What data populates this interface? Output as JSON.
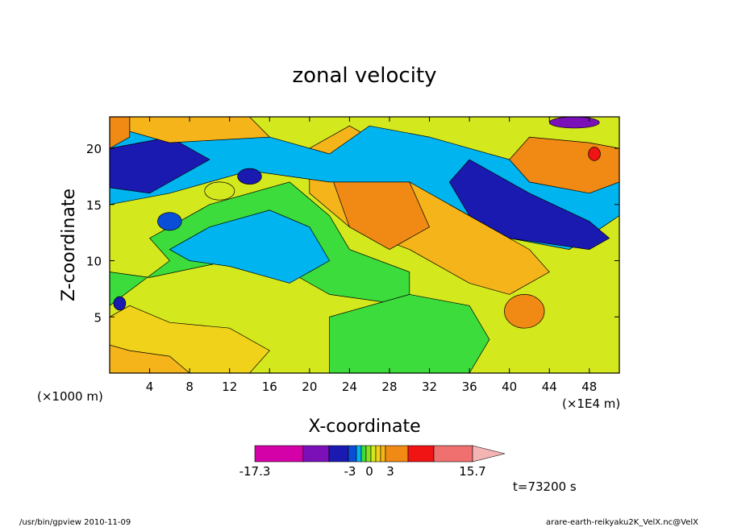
{
  "chart_data": {
    "type": "heatmap",
    "title": "zonal velocity",
    "xlabel": "X-coordinate",
    "ylabel": "Z-coordinate",
    "x_unit": "(×1E4 m)",
    "y_unit": "(×1000 m)",
    "xlim": [
      0,
      51
    ],
    "ylim": [
      0,
      22.8
    ],
    "x_ticks": [
      4,
      8,
      12,
      16,
      20,
      24,
      28,
      32,
      36,
      40,
      44,
      48
    ],
    "y_ticks": [
      5,
      10,
      15,
      20
    ],
    "colorbar": {
      "colors": [
        "#d400a8",
        "#7b10b8",
        "#1a1ab0",
        "#0a4ed8",
        "#00b4f0",
        "#3bdc3b",
        "#8be01e",
        "#d4e81e",
        "#f0d21a",
        "#f4b41a",
        "#f08a14",
        "#f01414",
        "#f07070",
        "#f4b4b4"
      ],
      "tick_labels": [
        "-17.3",
        "-3",
        "0",
        "3",
        "15.7"
      ],
      "extend": "max"
    },
    "time_label": "t=73200 s"
  },
  "footer": {
    "left": "/usr/bin/gpview   2010-11-09",
    "right": "arare-earth-reikyaku2K_VelX.nc@VelX"
  }
}
